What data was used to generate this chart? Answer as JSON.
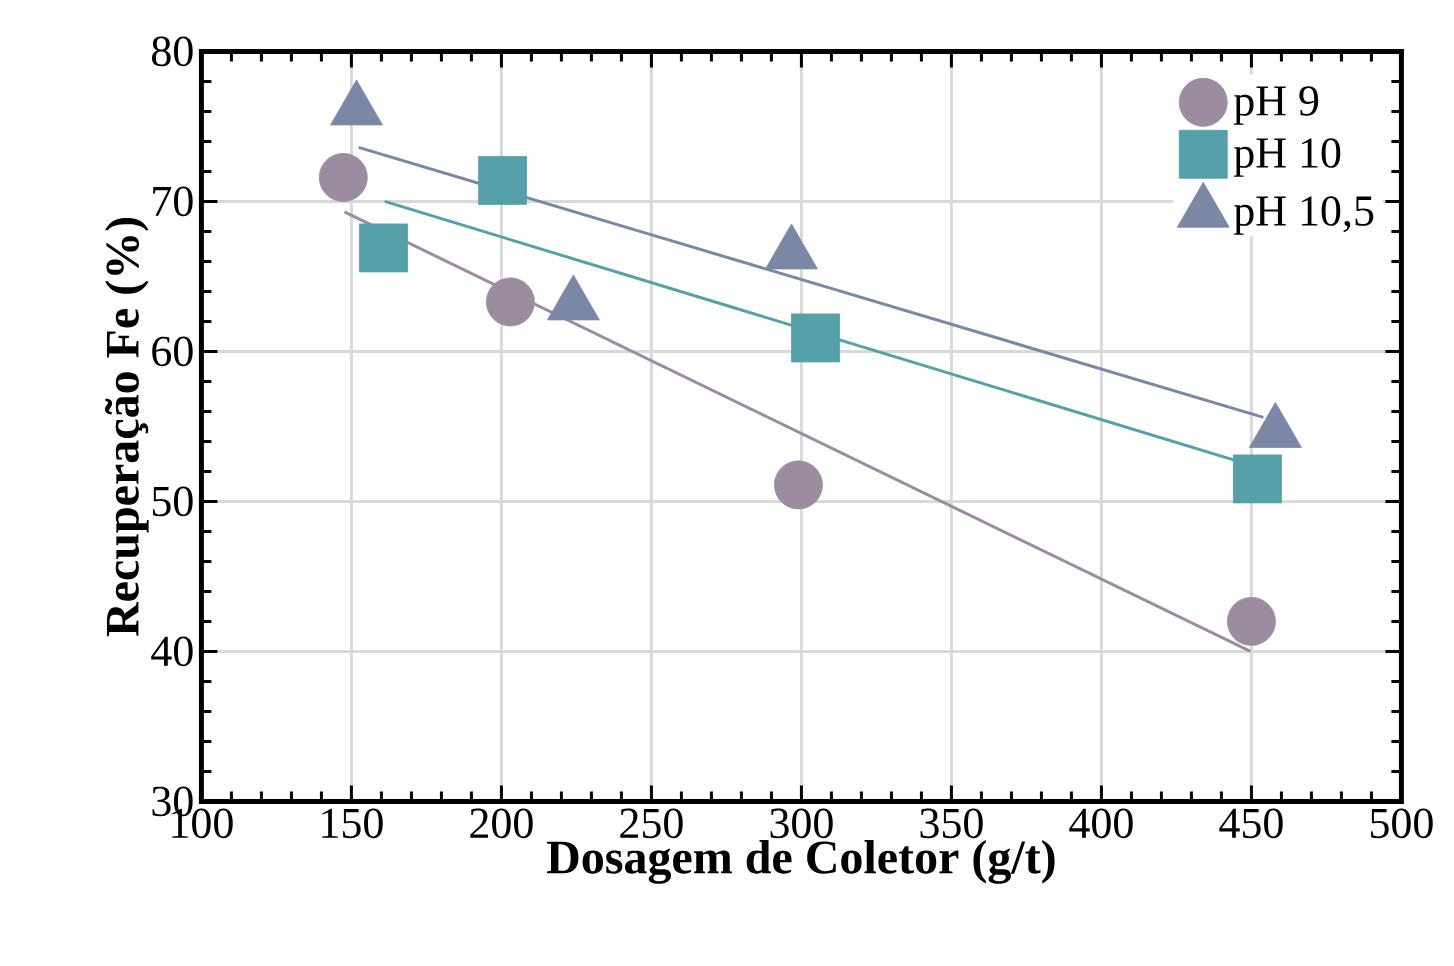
{
  "chart_data": {
    "type": "scatter",
    "xlabel": "Dosagem de Coletor (g/t)",
    "ylabel": "Recuperação Fe (%)",
    "xlim": [
      100,
      500
    ],
    "xticks": [
      100,
      150,
      200,
      250,
      300,
      350,
      400,
      450,
      500
    ],
    "ylim": [
      30,
      80
    ],
    "yticks": [
      30,
      40,
      50,
      60,
      70,
      80
    ],
    "grid": true,
    "legend": "top right",
    "series": [
      {
        "name": "pH 9",
        "color": "#9b8d9f",
        "marker": "circle",
        "x": [
          147.3,
          203,
          299,
          450
        ],
        "values": [
          71.6,
          63.3,
          51.1,
          42.0
        ]
      },
      {
        "name": "pH 10",
        "color": "#56a0aa",
        "marker": "square",
        "x": [
          160.7,
          200.4,
          304.7,
          452
        ],
        "values": [
          66.9,
          71.4,
          60.9,
          51.5
        ]
      },
      {
        "name": "pH 10,5",
        "color": "#7a88a6",
        "marker": "triangle",
        "x": [
          151.7,
          224,
          296.7,
          458
        ],
        "values": [
          76.1,
          63.1,
          66.5,
          54.6
        ]
      },
      {
        "type": "line",
        "color": "#9b8d9f",
        "marker": "none",
        "x": [
          147.7,
          449.7
        ],
        "values": [
          69.3,
          40.0
        ]
      },
      {
        "type": "line",
        "color": "#56a0aa",
        "marker": "none",
        "x": [
          161.1,
          451.7
        ],
        "values": [
          70.0,
          52.3
        ]
      },
      {
        "type": "line",
        "color": "#7a88a6",
        "marker": "none",
        "x": [
          152.4,
          454
        ],
        "values": [
          73.6,
          55.6
        ]
      }
    ]
  }
}
